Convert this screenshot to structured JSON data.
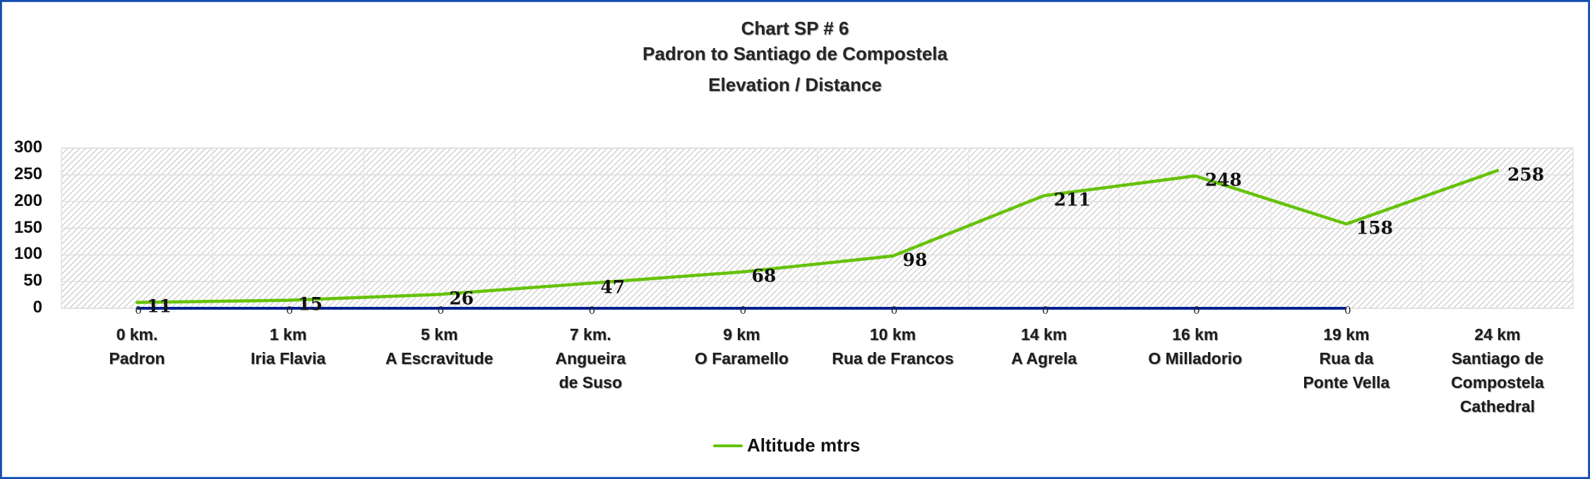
{
  "title": {
    "line1": "Chart  SP # 6",
    "line2": "Padron to Santiago de Compostela",
    "line3": "Elevation / Distance"
  },
  "y_ticks": [
    "300",
    "250",
    "200",
    "150",
    "100",
    "50",
    "0"
  ],
  "x_labels": [
    {
      "line": "0 km.\nPadron"
    },
    {
      "line": "1 km\nIria  Flavia"
    },
    {
      "line": "5 km\nA Escravitude"
    },
    {
      "line": "7 km.\nAngueira\nde Suso"
    },
    {
      "line": "9 km\nO Faramello"
    },
    {
      "line": "10 km\nRua de Francos"
    },
    {
      "line": "14 km\nA Agrela"
    },
    {
      "line": "16 km\nO Milladorio"
    },
    {
      "line": "19 km\nRua da\nPonte Vella"
    },
    {
      "line": "24 km\nSantiago  de\nCompostela\nCathedral"
    }
  ],
  "legend": {
    "label": "Altitude  mtrs",
    "color": "#66c20a"
  },
  "colors": {
    "altitude": "#66c20a",
    "baseline": "#00208f",
    "frame": "#1a4ba8"
  },
  "chart_data": {
    "type": "line",
    "title": "Chart  SP # 6 / Padron to Santiago de Compostela / Elevation / Distance",
    "xlabel": "",
    "ylabel": "",
    "ylim": [
      0,
      300
    ],
    "y_ticks": [
      0,
      50,
      100,
      150,
      200,
      250,
      300
    ],
    "grid": true,
    "legend_position": "bottom",
    "categories": [
      "0 km. Padron",
      "1 km Iria  Flavia",
      "5 km A Escravitude",
      "7 km. Angueira de Suso",
      "9 km O Faramello",
      "10 km Rua de Francos",
      "14 km A Agrela",
      "16 km O Milladorio",
      "19 km Rua da Ponte Vella",
      "24 km Santiago  de Compostela Cathedral"
    ],
    "series": [
      {
        "name": "Altitude  mtrs",
        "values": [
          11,
          15,
          26,
          47,
          68,
          98,
          211,
          248,
          158,
          258
        ],
        "color": "#66c20a"
      },
      {
        "name": "(baseline)",
        "values": [
          0,
          0,
          0,
          0,
          0,
          0,
          0,
          0,
          0,
          null
        ],
        "color": "#00208f",
        "show_in_legend": false
      }
    ]
  }
}
